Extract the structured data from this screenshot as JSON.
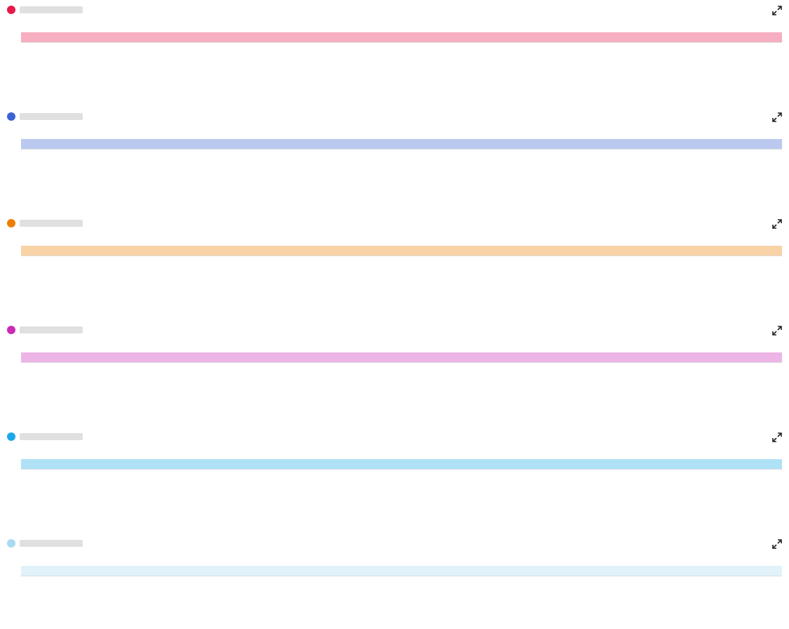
{
  "panels": [
    {
      "color": "#e8184a"
    },
    {
      "color": "#3b63d6"
    },
    {
      "color": "#ef7d00"
    },
    {
      "color": "#cc2bb4"
    },
    {
      "color": "#1aa9e8"
    },
    {
      "color": "#a9daf2"
    }
  ]
}
